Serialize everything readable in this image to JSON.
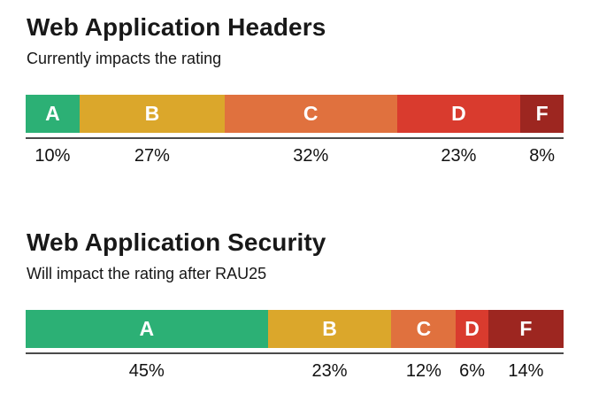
{
  "background": "#ffffff",
  "text_color": "#111111",
  "divider_color": "#4a4a4a",
  "chart_data": [
    {
      "type": "bar",
      "variant": "stacked-horizontal",
      "title": "Web Application Headers",
      "subtitle": "Currently impacts the rating",
      "categories": [
        "A",
        "B",
        "C",
        "D",
        "F"
      ],
      "values": [
        10,
        27,
        32,
        23,
        8
      ],
      "value_labels": [
        "10%",
        "27%",
        "32%",
        "23%",
        "8%"
      ],
      "colors": [
        "#2cb075",
        "#dba72b",
        "#e0713e",
        "#d93b2e",
        "#9d2620"
      ],
      "unit": "%",
      "xlim": [
        0,
        100
      ],
      "legend": "none",
      "grid": false
    },
    {
      "type": "bar",
      "variant": "stacked-horizontal",
      "title": "Web Application Security",
      "subtitle": "Will impact the rating after RAU25",
      "categories": [
        "A",
        "B",
        "C",
        "D",
        "F"
      ],
      "values": [
        45,
        23,
        12,
        6,
        14
      ],
      "value_labels": [
        "45%",
        "23%",
        "12%",
        "6%",
        "14%"
      ],
      "colors": [
        "#2cb075",
        "#dba72b",
        "#e0713e",
        "#d93b2e",
        "#9d2620"
      ],
      "unit": "%",
      "xlim": [
        0,
        100
      ],
      "legend": "none",
      "grid": false
    }
  ]
}
